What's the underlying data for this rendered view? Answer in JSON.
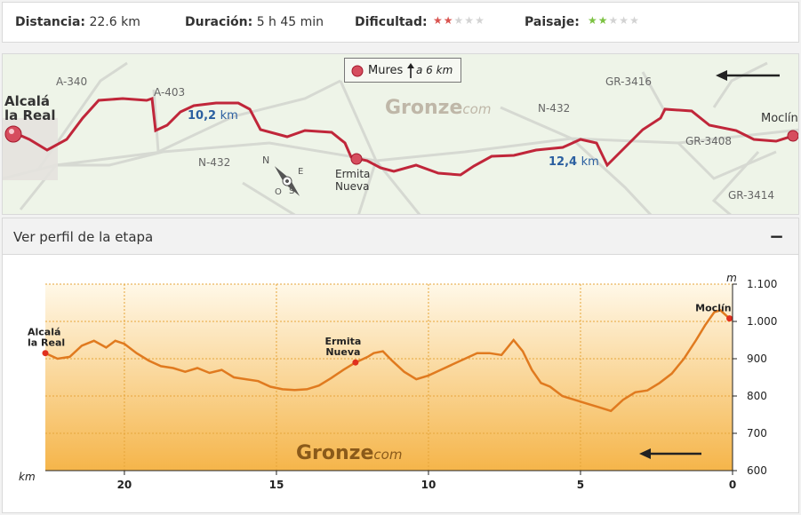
{
  "stats": {
    "distance_label": "Distancia:",
    "distance_value": "22.6 km",
    "duration_label": "Duración:",
    "duration_value": "5 h 45 min",
    "difficulty_label": "Dificultad:",
    "difficulty_rating": 2,
    "scenery_label": "Paisaje:",
    "scenery_rating": 2,
    "max_rating": 5,
    "difficulty_color": "#d9534f",
    "scenery_color": "#7cc242",
    "empty_star_color": "#d3d3d3"
  },
  "map": {
    "start_city_line1": "Alcalá",
    "start_city_line2": "la Real",
    "end_city": "Moclín",
    "mid_town_line1": "Ermita",
    "mid_town_line2": "Nueva",
    "km_first": "10,2",
    "km_second": "12,4",
    "km_unit": "km",
    "detour_name": "Mures",
    "detour_distance": "a 6 km",
    "watermark": "Gronze",
    "watermark_sub": "com",
    "roads": [
      "A-340",
      "A-403",
      "N-432",
      "N-432",
      "GR-3416",
      "GR-3408",
      "GR-3414"
    ],
    "compass_n": "N",
    "compass_e": "E",
    "compass_s": "S",
    "compass_o": "O",
    "route_color": "#c0263a",
    "direction": "right-to-left"
  },
  "profile": {
    "header_label": "Ver perfil de la etapa",
    "collapse_label": "−"
  },
  "chart_data": {
    "type": "area",
    "title": "",
    "xlabel": "km",
    "ylabel": "m",
    "xlim": [
      22.6,
      0
    ],
    "ylim": [
      600,
      1100
    ],
    "x_ticks": [
      20,
      15,
      10,
      5,
      0
    ],
    "y_ticks": [
      600,
      700,
      800,
      900,
      1000,
      1100
    ],
    "y_tick_labels": [
      "600",
      "700",
      "800",
      "900",
      "1.000",
      "1.100"
    ],
    "grid": true,
    "line_color": "#e07a1f",
    "watermark": "Gronze",
    "watermark_sub": "com",
    "direction": "right-to-left",
    "points_labels": [
      {
        "line1": "Alcalá",
        "line2": "la Real",
        "km": 22.6,
        "elev": 915
      },
      {
        "line1": "Ermita",
        "line2": "Nueva",
        "km": 12.4,
        "elev": 890
      },
      {
        "line1": "Moclín",
        "line2": "",
        "km": 0.1,
        "elev": 1008
      }
    ],
    "series": [
      {
        "x": [
          22.6,
          22.2,
          21.8,
          21.4,
          21.0,
          20.6,
          20.3,
          20.0,
          19.6,
          19.2,
          18.8,
          18.4,
          18.0,
          17.6,
          17.2,
          16.8,
          16.4,
          16.0,
          15.6,
          15.2,
          14.8,
          14.4,
          14.0,
          13.6,
          13.2,
          12.8,
          12.4,
          12.0,
          11.8,
          11.5,
          11.2,
          10.8,
          10.4,
          10.0,
          9.6,
          9.2,
          8.8,
          8.4,
          8.0,
          7.6,
          7.2,
          6.9,
          6.6,
          6.3,
          6.0,
          5.6,
          5.2,
          4.8,
          4.4,
          4.0,
          3.6,
          3.2,
          2.8,
          2.4,
          2.0,
          1.6,
          1.2,
          0.9,
          0.6,
          0.4,
          0.2,
          0.1
        ],
        "y": [
          915,
          900,
          905,
          935,
          948,
          930,
          948,
          940,
          915,
          895,
          880,
          875,
          865,
          875,
          862,
          870,
          850,
          845,
          840,
          825,
          818,
          816,
          818,
          828,
          848,
          870,
          890,
          905,
          915,
          920,
          895,
          865,
          845,
          855,
          870,
          885,
          900,
          915,
          915,
          910,
          950,
          920,
          870,
          835,
          825,
          800,
          790,
          780,
          770,
          760,
          790,
          810,
          815,
          835,
          860,
          900,
          950,
          990,
          1025,
          1030,
          1015,
          1008
        ]
      }
    ]
  }
}
